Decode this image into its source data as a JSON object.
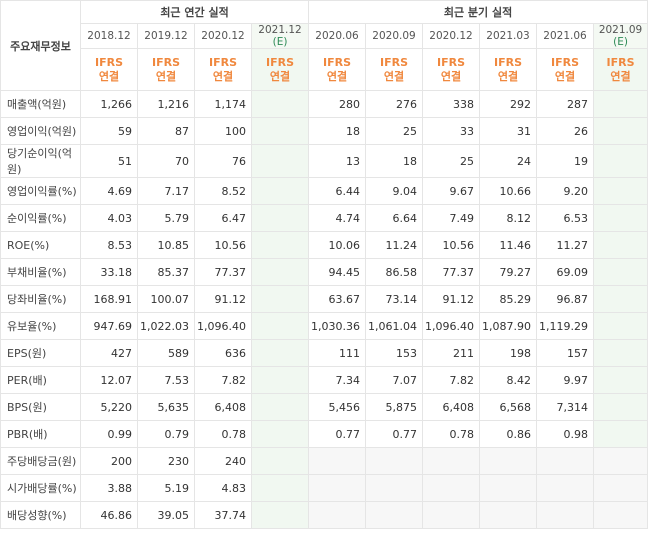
{
  "header": {
    "row_title": "주요재무정보",
    "annual_title": "최근 연간 실적",
    "quarter_title": "최근 분기 실적",
    "annual_dates": [
      "2018.12",
      "2019.12",
      "2020.12"
    ],
    "annual_est_date": "2021.12",
    "quarter_dates": [
      "2020.06",
      "2020.09",
      "2020.12",
      "2021.03",
      "2021.06"
    ],
    "quarter_est_date": "2021.09",
    "est_mark": "(E)",
    "ifrs_line1": "IFRS",
    "ifrs_line2": "연결"
  },
  "rows": [
    {
      "label": "매출액(억원)",
      "annual": [
        "1,266",
        "1,216",
        "1,174"
      ],
      "annual_est": "",
      "quarter": [
        "280",
        "276",
        "338",
        "292",
        "287"
      ],
      "quarter_est": ""
    },
    {
      "label": "영업이익(억원)",
      "annual": [
        "59",
        "87",
        "100"
      ],
      "annual_est": "",
      "quarter": [
        "18",
        "25",
        "33",
        "31",
        "26"
      ],
      "quarter_est": ""
    },
    {
      "label": "당기순이익(억원)",
      "annual": [
        "51",
        "70",
        "76"
      ],
      "annual_est": "",
      "quarter": [
        "13",
        "18",
        "25",
        "24",
        "19"
      ],
      "quarter_est": ""
    },
    {
      "label": "영업이익률(%)",
      "annual": [
        "4.69",
        "7.17",
        "8.52"
      ],
      "annual_est": "",
      "quarter": [
        "6.44",
        "9.04",
        "9.67",
        "10.66",
        "9.20"
      ],
      "quarter_est": ""
    },
    {
      "label": "순이익률(%)",
      "annual": [
        "4.03",
        "5.79",
        "6.47"
      ],
      "annual_est": "",
      "quarter": [
        "4.74",
        "6.64",
        "7.49",
        "8.12",
        "6.53"
      ],
      "quarter_est": ""
    },
    {
      "label": "ROE(%)",
      "annual": [
        "8.53",
        "10.85",
        "10.56"
      ],
      "annual_est": "",
      "quarter": [
        "10.06",
        "11.24",
        "10.56",
        "11.46",
        "11.27"
      ],
      "quarter_est": ""
    },
    {
      "label": "부채비율(%)",
      "annual": [
        "33.18",
        "85.37",
        "77.37"
      ],
      "annual_est": "",
      "quarter": [
        "94.45",
        "86.58",
        "77.37",
        "79.27",
        "69.09"
      ],
      "quarter_est": ""
    },
    {
      "label": "당좌비율(%)",
      "annual": [
        "168.91",
        "100.07",
        "91.12"
      ],
      "annual_est": "",
      "quarter": [
        "63.67",
        "73.14",
        "91.12",
        "85.29",
        "96.87"
      ],
      "quarter_est": ""
    },
    {
      "label": "유보율(%)",
      "annual": [
        "947.69",
        "1,022.03",
        "1,096.40"
      ],
      "annual_est": "",
      "quarter": [
        "1,030.36",
        "1,061.04",
        "1,096.40",
        "1,087.90",
        "1,119.29"
      ],
      "quarter_est": ""
    },
    {
      "label": "EPS(원)",
      "annual": [
        "427",
        "589",
        "636"
      ],
      "annual_est": "",
      "quarter": [
        "111",
        "153",
        "211",
        "198",
        "157"
      ],
      "quarter_est": ""
    },
    {
      "label": "PER(배)",
      "annual": [
        "12.07",
        "7.53",
        "7.82"
      ],
      "annual_est": "",
      "quarter": [
        "7.34",
        "7.07",
        "7.82",
        "8.42",
        "9.97"
      ],
      "quarter_est": ""
    },
    {
      "label": "BPS(원)",
      "annual": [
        "5,220",
        "5,635",
        "6,408"
      ],
      "annual_est": "",
      "quarter": [
        "5,456",
        "5,875",
        "6,408",
        "6,568",
        "7,314"
      ],
      "quarter_est": ""
    },
    {
      "label": "PBR(배)",
      "annual": [
        "0.99",
        "0.79",
        "0.78"
      ],
      "annual_est": "",
      "quarter": [
        "0.77",
        "0.77",
        "0.78",
        "0.86",
        "0.98"
      ],
      "quarter_est": ""
    },
    {
      "label": "주당배당금(원)",
      "annual": [
        "200",
        "230",
        "240"
      ],
      "annual_est": "",
      "quarter": [
        "",
        "",
        "",
        "",
        ""
      ],
      "quarter_est": ""
    },
    {
      "label": "시가배당률(%)",
      "annual": [
        "3.88",
        "5.19",
        "4.83"
      ],
      "annual_est": "",
      "quarter": [
        "",
        "",
        "",
        "",
        ""
      ],
      "quarter_est": ""
    },
    {
      "label": "배당성향(%)",
      "annual": [
        "46.86",
        "39.05",
        "37.74"
      ],
      "annual_est": "",
      "quarter": [
        "",
        "",
        "",
        "",
        ""
      ],
      "quarter_est": ""
    }
  ],
  "group_starts": [
    0,
    3,
    6,
    9,
    13
  ],
  "colors": {
    "ifrs": "#f0883e",
    "estimate_bg": "#f1f8f1",
    "estimate_mark": "#2e8b57",
    "empty_bg": "#f7f7f7"
  }
}
